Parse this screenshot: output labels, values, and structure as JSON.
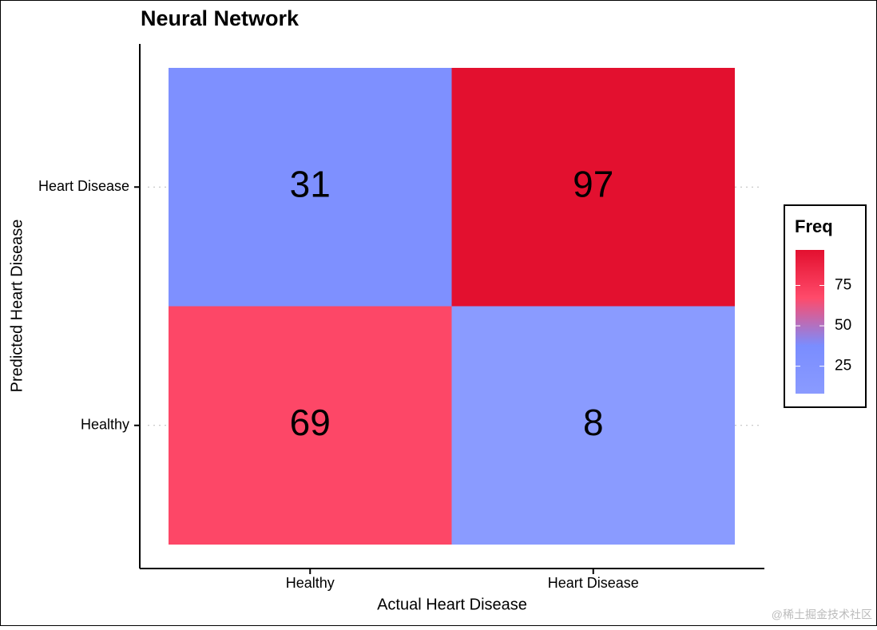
{
  "chart_data": {
    "type": "heatmap",
    "title": "Neural Network",
    "x_label": "Actual Heart Disease",
    "y_label": "Predicted Heart Disease",
    "x_categories": [
      "Healthy",
      "Heart Disease"
    ],
    "y_categories": [
      "Healthy",
      "Heart Disease"
    ],
    "values": [
      [
        69,
        8
      ],
      [
        31,
        97
      ]
    ],
    "legend_title": "Freq",
    "clim": [
      8,
      97
    ],
    "colorbar_ticks": [
      25,
      50,
      75
    ],
    "colorscale": [
      "#8a9bff",
      "#7a8dff",
      "#ff4a6a",
      "#e3102f"
    ],
    "watermark": "@稀土掘金技术社区"
  }
}
